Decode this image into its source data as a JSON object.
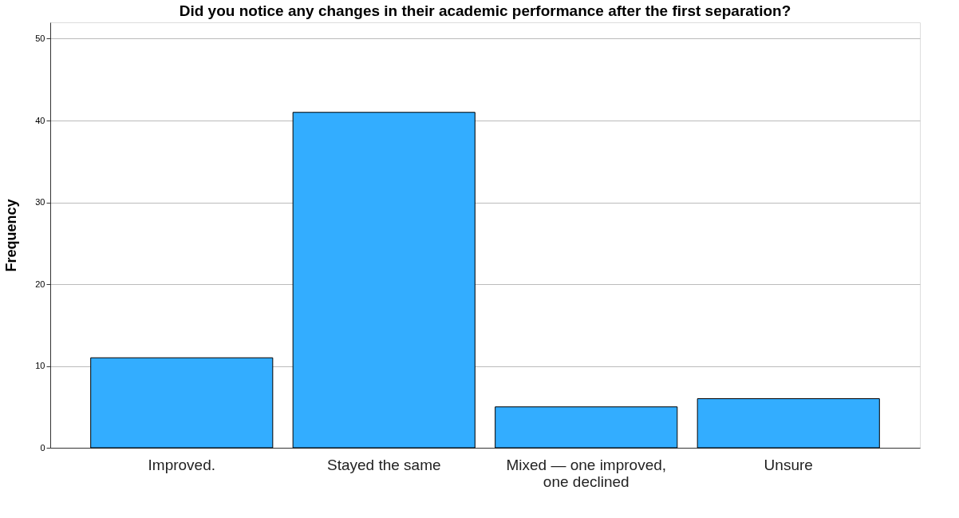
{
  "chart_data": {
    "type": "bar",
    "title": "Did you notice any changes in their academic performance after the first separation?",
    "ylabel": "Frequency",
    "categories": [
      "Improved.",
      "Stayed the same",
      "Mixed — one improved, one declined",
      "Unsure"
    ],
    "values": [
      11,
      41,
      5,
      6
    ],
    "color": "#33adff",
    "ylim": [
      0,
      52
    ],
    "yticks": [
      0,
      10,
      20,
      30,
      40,
      50
    ],
    "grid": "y"
  }
}
